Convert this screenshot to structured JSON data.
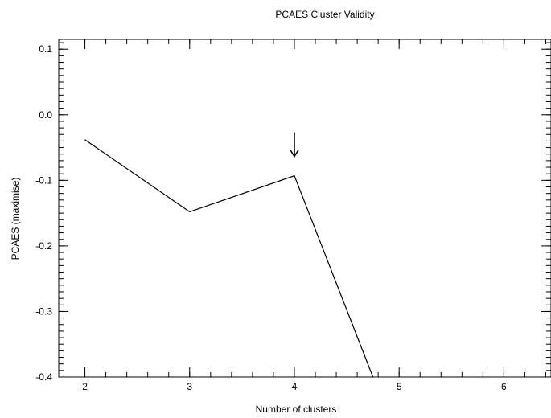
{
  "chart_data": {
    "type": "line",
    "title": "PCAES Cluster Validity",
    "xlabel": "Number of clusters",
    "ylabel": "PCAES (maximise)",
    "xlim": [
      1.75,
      6.45
    ],
    "ylim": [
      -0.4,
      0.115
    ],
    "x_ticks": [
      2,
      3,
      4,
      5,
      6
    ],
    "x_tick_labels": [
      "2",
      "3",
      "4",
      "5",
      "6"
    ],
    "y_ticks": [
      0.1,
      0.0,
      -0.1,
      -0.2,
      -0.3,
      -0.4
    ],
    "y_tick_labels": [
      "0.1",
      "0.0",
      "-0.1",
      "-0.2",
      "-0.3",
      "-0.4"
    ],
    "x_minor_step": 0.2,
    "y_minor_step": 0.01,
    "grid": false,
    "series": [
      {
        "x": [
          2,
          3,
          4,
          4.75
        ],
        "y": [
          -0.038,
          -0.148,
          -0.093,
          -0.4
        ]
      }
    ],
    "annotations": [
      {
        "type": "arrow",
        "points_to_x": 4,
        "direction": "down"
      }
    ],
    "colors": {
      "line": "#000000",
      "axes": "#000000",
      "background": "#ffffff"
    }
  }
}
